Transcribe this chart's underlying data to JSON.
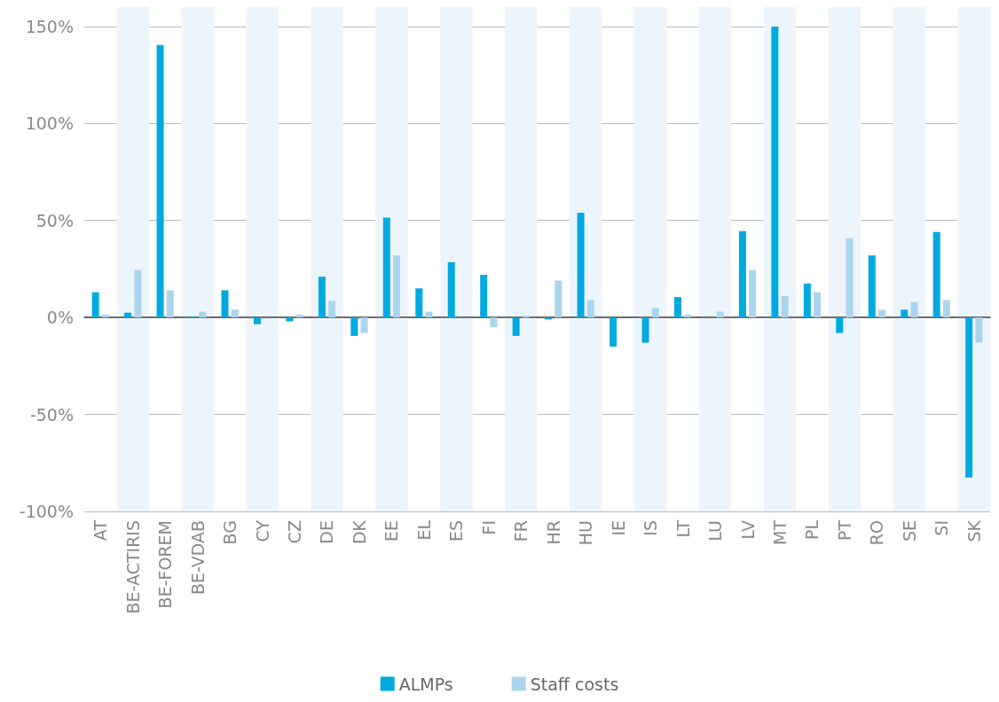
{
  "chart_data": {
    "type": "bar",
    "categories": [
      "AT",
      "BE-ACTIRIS",
      "BE-FOREM",
      "BE-VDAB",
      "BG",
      "CY",
      "CZ",
      "DE",
      "DK",
      "EE",
      "EL",
      "ES",
      "FI",
      "FR",
      "HR",
      "HU",
      "IE",
      "IS",
      "LT",
      "LU",
      "LV",
      "MT",
      "PL",
      "PT",
      "RO",
      "SE",
      "SI",
      "SK"
    ],
    "series": [
      {
        "name": "ALMPs",
        "color": "#00aadf",
        "values": [
          13,
          2.5,
          140.5,
          0.5,
          14,
          -3.5,
          -2,
          21,
          -9.5,
          51.5,
          15,
          28.5,
          22,
          -9.5,
          -1,
          54,
          -15,
          -13,
          10.5,
          0,
          44.5,
          150,
          17.5,
          -8,
          32,
          4,
          44,
          -82.5
        ]
      },
      {
        "name": "Staff costs",
        "color": "#abd5ee",
        "values": [
          1.5,
          24.5,
          14,
          3,
          4,
          0,
          1.5,
          8.5,
          -8,
          32,
          3,
          0,
          -5,
          1,
          19,
          9,
          0,
          5,
          1.5,
          3,
          24.5,
          11,
          13,
          41,
          4,
          8,
          9,
          -13
        ]
      }
    ],
    "ylim": [
      -100,
      160
    ],
    "yticks": [
      {
        "value": -100,
        "label": "-100%"
      },
      {
        "value": -50,
        "label": "-50%"
      },
      {
        "value": 0,
        "label": "0%"
      },
      {
        "value": 50,
        "label": "50%"
      },
      {
        "value": 100,
        "label": "100%"
      },
      {
        "value": 150,
        "label": "150%"
      }
    ],
    "grid": "y",
    "legend": "bottom"
  }
}
